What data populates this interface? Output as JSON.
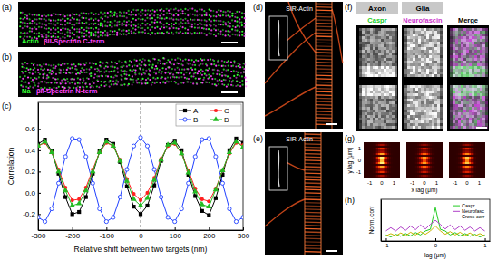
{
  "panels": {
    "labels": [
      "(a)",
      "(b)",
      "(c)",
      "(d)",
      "(e)",
      "(f)",
      "(g)",
      "(h)"
    ],
    "a": {
      "texts": [
        "Actin",
        "βII-Spectrin  C-term"
      ],
      "colors": [
        "#33ff33",
        "#ff44ff"
      ]
    },
    "b": {
      "texts": [
        "Na",
        "βII-Spectrin  N-term"
      ],
      "colors": [
        "#33ff33",
        "#ff44ff"
      ]
    },
    "d": {
      "text": "SIR-Actin"
    },
    "e": {
      "text": "SIR-Actin"
    },
    "f": {
      "headers": [
        "Axon",
        "Glia"
      ],
      "channels": [
        "Caspr",
        "Neurofascin",
        "Merge"
      ],
      "colors": [
        "#22cc22",
        "#cc33cc",
        "#000000"
      ]
    },
    "g": {
      "x_label": "x lag (μm)",
      "y_label": "y lag (μm)",
      "ticks": [
        -1,
        0,
        1
      ],
      "lim": [
        -1.5,
        1.5
      ]
    }
  },
  "chart_data": [
    {
      "type": "line",
      "x_label": "Relative shift between two targets (nm)",
      "y_label": "Correlation",
      "x": [
        -300,
        -280,
        -260,
        -240,
        -220,
        -200,
        -180,
        -160,
        -140,
        -120,
        -100,
        -80,
        -60,
        -40,
        -20,
        0,
        20,
        40,
        60,
        80,
        100,
        120,
        140,
        160,
        180,
        200,
        220,
        240,
        260,
        280,
        300
      ],
      "series": [
        {
          "name": "A",
          "color": "#000000",
          "marker": "square",
          "line_style": "solid",
          "values": [
            0.46,
            0.5,
            0.39,
            0.18,
            -0.04,
            -0.2,
            -0.18,
            -0.04,
            0.18,
            0.39,
            0.5,
            0.46,
            0.29,
            0.06,
            -0.13,
            -0.2,
            -0.12,
            0.07,
            0.3,
            0.45,
            0.49,
            0.4,
            0.17,
            -0.03,
            -0.17,
            -0.21,
            -0.05,
            0.17,
            0.4,
            0.51,
            0.47
          ]
        },
        {
          "name": "B",
          "color": "#1f3fff",
          "marker": "circle-open",
          "line_style": "solid",
          "values": [
            -0.23,
            -0.27,
            -0.15,
            0.09,
            0.34,
            0.51,
            0.5,
            0.34,
            0.09,
            -0.15,
            -0.27,
            -0.23,
            -0.04,
            0.22,
            0.44,
            0.52,
            0.44,
            0.22,
            -0.04,
            -0.23,
            -0.27,
            -0.15,
            0.09,
            0.34,
            0.5,
            0.51,
            0.34,
            0.09,
            -0.15,
            -0.27,
            -0.23
          ]
        },
        {
          "name": "C",
          "color": "#ff2020",
          "marker": "circle",
          "line_style": "solid",
          "values": [
            0.44,
            0.47,
            0.38,
            0.22,
            0.05,
            -0.07,
            -0.06,
            0.05,
            0.22,
            0.38,
            0.47,
            0.44,
            0.31,
            0.13,
            -0.01,
            -0.07,
            0.0,
            0.14,
            0.32,
            0.44,
            0.46,
            0.37,
            0.21,
            0.04,
            -0.06,
            -0.08,
            0.04,
            0.21,
            0.37,
            0.47,
            0.45
          ]
        },
        {
          "name": "D",
          "color": "#22bb22",
          "marker": "triangle",
          "line_style": "solid",
          "values": [
            0.44,
            0.48,
            0.38,
            0.2,
            0.02,
            -0.12,
            -0.1,
            0.02,
            0.2,
            0.38,
            0.48,
            0.44,
            0.3,
            0.11,
            -0.06,
            -0.12,
            -0.05,
            0.12,
            0.31,
            0.45,
            0.47,
            0.37,
            0.19,
            0.01,
            -0.11,
            -0.13,
            0.03,
            0.21,
            0.38,
            0.48,
            0.43
          ]
        }
      ],
      "reference_x": 0,
      "xlim": [
        -300,
        300
      ],
      "xticks": [
        -300,
        -200,
        -100,
        0,
        100,
        200,
        300
      ],
      "ylim": [
        -0.35,
        0.85
      ],
      "yticks": [
        -0.2,
        {
          "value": 0,
          "label": "0.0"
        },
        0.2,
        0.4,
        0.6
      ],
      "legend": "top right"
    },
    {
      "type": "line",
      "x_label": "lag (μm)",
      "y_label": "Norm. corr",
      "x": [
        -1,
        -0.9,
        -0.8,
        -0.7,
        -0.6,
        -0.5,
        -0.4,
        -0.3,
        -0.2,
        -0.1,
        0,
        0.1,
        0.2,
        0.3,
        0.4,
        0.5,
        0.6,
        0.7,
        0.8,
        0.9,
        1
      ],
      "series": [
        {
          "name": "Caspr",
          "color": "#22cc22",
          "marker": "none",
          "line_style": "solid",
          "values": [
            0.18,
            0.12,
            0.2,
            0.14,
            0.22,
            0.15,
            0.25,
            0.18,
            0.3,
            0.35,
            1,
            0.35,
            0.3,
            0.18,
            0.25,
            0.15,
            0.22,
            0.14,
            0.2,
            0.12,
            0.18
          ]
        },
        {
          "name": "Neurofasc",
          "color": "#b040c8",
          "marker": "none",
          "line_style": "solid",
          "values": [
            0.3,
            0.4,
            0.3,
            0.42,
            0.32,
            0.45,
            0.34,
            0.48,
            0.36,
            0.5,
            0.62,
            0.5,
            0.36,
            0.48,
            0.34,
            0.45,
            0.32,
            0.42,
            0.3,
            0.4,
            0.3
          ]
        },
        {
          "name": "Cross corr",
          "color": "#c8b400",
          "marker": "none",
          "line_style": "solid",
          "values": [
            0.15,
            0.22,
            0.15,
            0.24,
            0.16,
            0.26,
            0.18,
            0.28,
            0.2,
            0.3,
            0.45,
            0.3,
            0.2,
            0.28,
            0.18,
            0.26,
            0.16,
            0.24,
            0.15,
            0.22,
            0.15
          ]
        }
      ],
      "xlim": [
        -1.1,
        1.1
      ],
      "xticks": [
        -1,
        0,
        1
      ],
      "ylim": [
        0,
        1.25
      ],
      "tick_labels": "x",
      "legend": "top right"
    }
  ]
}
